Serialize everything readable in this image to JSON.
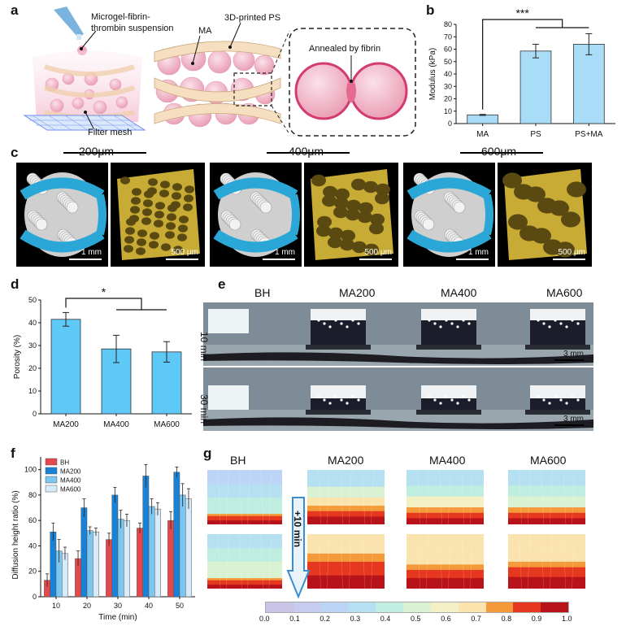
{
  "panels": {
    "a": "a",
    "b": "b",
    "c": "c",
    "d": "d",
    "e": "e",
    "f": "f",
    "g": "g"
  },
  "panel_a": {
    "suspension_label": "Microgel-fibrin-thrombin suspension",
    "filter_label": "Filter mesh",
    "printed_label": "3D-printed PS",
    "ma_label": "MA",
    "annealed_label": "Annealed by fibrin"
  },
  "panel_c": {
    "headers": [
      "200μm",
      "400μm",
      "600μm"
    ],
    "scale_1mm": "1 mm",
    "scale_500um": "500 μm"
  },
  "panel_e": {
    "columns": [
      "BH",
      "MA200",
      "MA400",
      "MA600"
    ],
    "rows": [
      "10 min",
      "30 min"
    ],
    "scale": "3 mm"
  },
  "panel_g": {
    "columns": [
      "BH",
      "MA200",
      "MA400",
      "MA600"
    ],
    "arrow_label": "+10 min",
    "colorbar_ticks": [
      "0.0",
      "0.1",
      "0.2",
      "0.3",
      "0.4",
      "0.5",
      "0.6",
      "0.7",
      "0.8",
      "0.9",
      "1.0"
    ],
    "colorbar_colors": [
      "#c9c3e6",
      "#c5ccf0",
      "#bcd4f5",
      "#b4e0f2",
      "#bfeee0",
      "#d9f3d2",
      "#f2f0c4",
      "#fbe3ad",
      "#f49a3a",
      "#e5381e",
      "#b8121b"
    ]
  },
  "chart_data": [
    {
      "type": "bar",
      "panel": "b",
      "categories": [
        "MA",
        "PS",
        "PS+MA"
      ],
      "values": [
        7,
        58.5,
        64
      ],
      "errors": [
        0.4,
        5.5,
        8.5
      ],
      "ylabel": "Modulus (kPa)",
      "ylim": [
        0,
        80
      ],
      "yticks": [
        "0",
        "10",
        "20",
        "30",
        "40",
        "50",
        "60",
        "70",
        "80"
      ],
      "significance": "***",
      "bar_color": "#a9dcf7"
    },
    {
      "type": "bar",
      "panel": "d",
      "categories": [
        "MA200",
        "MA400",
        "MA600"
      ],
      "values": [
        41.5,
        28.5,
        27.2
      ],
      "errors": [
        3,
        6,
        4.5
      ],
      "ylabel": "Porosity (%)",
      "ylim": [
        0,
        50
      ],
      "yticks": [
        "0",
        "10",
        "20",
        "30",
        "40",
        "50"
      ],
      "significance": "*",
      "bar_color": "#5ec8f7"
    },
    {
      "type": "bar",
      "panel": "f",
      "categories": [
        "10",
        "20",
        "30",
        "40",
        "50"
      ],
      "xlabel": "Time (min)",
      "ylabel": "Diffusion height ratio (%)",
      "ylim": [
        0,
        110
      ],
      "yticks": [
        "0",
        "20",
        "40",
        "60",
        "80",
        "100"
      ],
      "legend_position": "top-left",
      "series": [
        {
          "name": "BH",
          "color": "#e5484d",
          "values": [
            13,
            30,
            45,
            54,
            60
          ],
          "errors": [
            5,
            6,
            5,
            4,
            7
          ]
        },
        {
          "name": "MA200",
          "color": "#1a82d6",
          "values": [
            51,
            70,
            80,
            95,
            98
          ],
          "errors": [
            7,
            7,
            6,
            9,
            4
          ]
        },
        {
          "name": "MA400",
          "color": "#7cc6f0",
          "values": [
            36,
            52,
            61,
            71,
            80
          ],
          "errors": [
            9,
            3,
            7,
            6,
            9
          ]
        },
        {
          "name": "MA600",
          "color": "#d7ecfa",
          "values": [
            34,
            51,
            60,
            69,
            77
          ],
          "errors": [
            5,
            3,
            5,
            5,
            8
          ]
        }
      ]
    }
  ]
}
